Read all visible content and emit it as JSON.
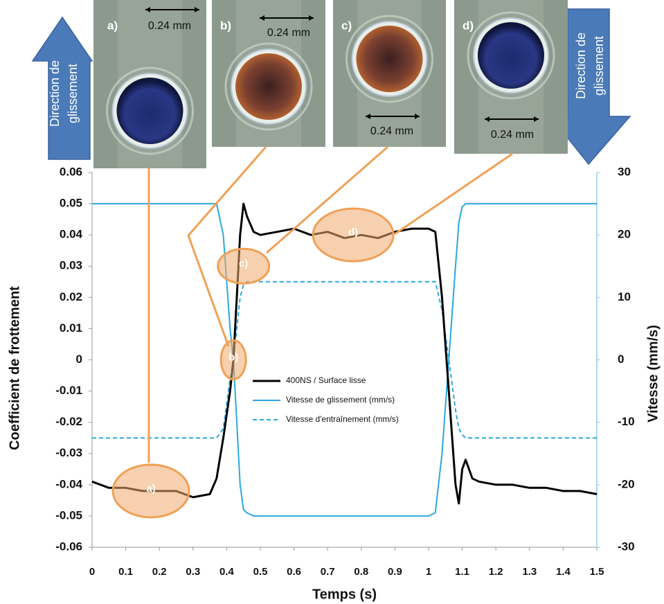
{
  "chart_data": {
    "type": "line",
    "x_label": "Temps (s)",
    "y_label": "Coefficient de frottement",
    "y2_label": "Vitesse (mm/s)",
    "x": [
      0,
      0.05,
      0.1,
      0.15,
      0.2,
      0.25,
      0.3,
      0.35,
      0.37,
      0.39,
      0.41,
      0.42,
      0.43,
      0.44,
      0.45,
      0.46,
      0.48,
      0.5,
      0.55,
      0.6,
      0.65,
      0.7,
      0.75,
      0.8,
      0.85,
      0.9,
      0.95,
      1.0,
      1.02,
      1.04,
      1.06,
      1.08,
      1.09,
      1.1,
      1.11,
      1.13,
      1.15,
      1.2,
      1.25,
      1.3,
      1.35,
      1.4,
      1.45,
      1.5
    ],
    "xlim": [
      0,
      1.5
    ],
    "xticks": [
      0,
      0.1,
      0.2,
      0.3,
      0.4,
      0.5,
      0.6,
      0.7,
      0.8,
      0.9,
      1,
      1.1,
      1.2,
      1.3,
      1.4,
      1.5
    ],
    "ylim": [
      -0.06,
      0.06
    ],
    "yticks": [
      0.06,
      0.05,
      0.04,
      0.03,
      0.02,
      0.01,
      0,
      -0.01,
      -0.02,
      -0.03,
      -0.04,
      -0.05,
      -0.06
    ],
    "y2lim": [
      -30,
      30
    ],
    "y2ticks": [
      30,
      20,
      10,
      0,
      -10,
      -20,
      -30
    ],
    "legend": "center",
    "series": [
      {
        "name": "400NS / Surface lisse",
        "color": "#000000",
        "dash": false,
        "values": [
          -0.039,
          -0.041,
          -0.041,
          -0.042,
          -0.042,
          -0.042,
          -0.044,
          -0.043,
          -0.038,
          -0.025,
          -0.01,
          0.0,
          0.02,
          0.04,
          0.05,
          0.046,
          0.041,
          0.04,
          0.041,
          0.042,
          0.04,
          0.041,
          0.039,
          0.04,
          0.039,
          0.041,
          0.042,
          0.042,
          0.041,
          0.02,
          -0.01,
          -0.04,
          -0.046,
          -0.035,
          -0.032,
          -0.038,
          -0.039,
          -0.04,
          -0.04,
          -0.041,
          -0.041,
          -0.042,
          -0.042,
          -0.043
        ]
      },
      {
        "name": "Vitesse de glissement (mm/s)",
        "color": "#29a8df",
        "dash": false,
        "axis": "y2",
        "values": [
          25,
          25,
          25,
          25,
          25,
          25,
          25,
          25,
          25,
          20,
          5,
          0,
          -10,
          -20,
          -24,
          -24.5,
          -25,
          -25,
          -25,
          -25,
          -25,
          -25,
          -25,
          -25,
          -25,
          -25,
          -25,
          -25,
          -24.5,
          -15,
          0,
          15,
          22,
          24.5,
          25,
          25,
          25,
          25,
          25,
          25,
          25,
          25,
          25,
          25
        ]
      },
      {
        "name": "Vitesse d'entraînement (mm/s)",
        "color": "#29a8df",
        "dash": true,
        "axis": "y2",
        "values": [
          -12.5,
          -12.5,
          -12.5,
          -12.5,
          -12.5,
          -12.5,
          -12.5,
          -12.5,
          -12.5,
          -11,
          -3,
          0,
          5,
          10,
          12,
          12.5,
          12.5,
          12.5,
          12.5,
          12.5,
          12.5,
          12.5,
          12.5,
          12.5,
          12.5,
          12.5,
          12.5,
          12.5,
          12.5,
          8,
          0,
          -8,
          -11,
          -12,
          -12.5,
          -12.5,
          -12.5,
          -12.5,
          -12.5,
          -12.5,
          -12.5,
          -12.5,
          -12.5,
          -12.5
        ]
      }
    ],
    "annotations": [
      {
        "label": "a)",
        "x": 0.175,
        "y": -0.042
      },
      {
        "label": "b)",
        "x": 0.42,
        "y": 0.0
      },
      {
        "label": "c)",
        "x": 0.45,
        "y": 0.03
      },
      {
        "label": "d)",
        "x": 0.776,
        "y": 0.04
      }
    ],
    "panels": [
      {
        "label": "a)",
        "scale": "0.24 mm"
      },
      {
        "label": "b)",
        "scale": "0.24 mm"
      },
      {
        "label": "c)",
        "scale": "0.24 mm"
      },
      {
        "label": "d)",
        "scale": "0.24 mm"
      }
    ],
    "direction_arrows": [
      {
        "lines": [
          "Direction de",
          "glissement"
        ]
      },
      {
        "lines": [
          "Direction de",
          "glissement"
        ]
      }
    ]
  }
}
